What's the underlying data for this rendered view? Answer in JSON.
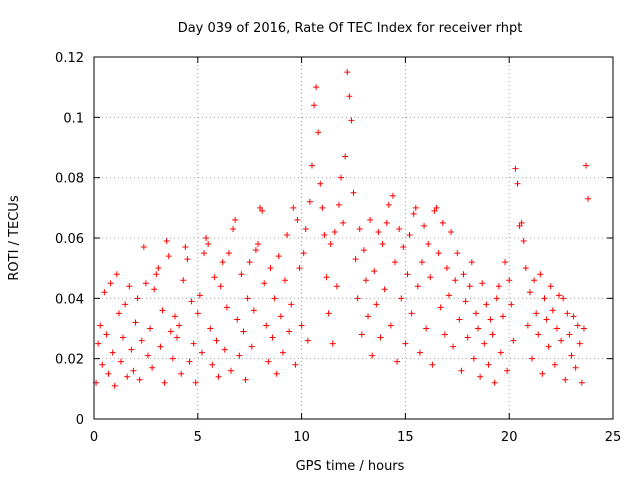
{
  "chart_data": {
    "type": "scatter",
    "title": "Day 039 of 2016, Rate Of TEC Index for receiver rhpt",
    "xlabel": "GPS time / hours",
    "ylabel": "ROTI / TECUs",
    "xlim": [
      0,
      25
    ],
    "ylim": [
      0,
      0.12
    ],
    "xticks": [
      0,
      5,
      10,
      15,
      20,
      25
    ],
    "yticks": [
      0,
      0.02,
      0.04,
      0.06,
      0.08,
      0.1,
      0.12
    ],
    "xtick_labels": [
      "0",
      "5",
      "10",
      "15",
      "20",
      "25"
    ],
    "ytick_labels": [
      "0",
      "0.02",
      "0.04",
      "0.06",
      "0.08",
      "0.1",
      "0.12"
    ],
    "grid": true,
    "marker": "+",
    "marker_color": "#ff0000",
    "series": [
      {
        "name": "ROTI",
        "points": [
          [
            0.1,
            0.012
          ],
          [
            0.2,
            0.025
          ],
          [
            0.3,
            0.031
          ],
          [
            0.4,
            0.018
          ],
          [
            0.5,
            0.042
          ],
          [
            0.6,
            0.028
          ],
          [
            0.7,
            0.015
          ],
          [
            0.8,
            0.045
          ],
          [
            0.9,
            0.022
          ],
          [
            1.0,
            0.011
          ],
          [
            1.1,
            0.048
          ],
          [
            1.2,
            0.035
          ],
          [
            1.3,
            0.019
          ],
          [
            1.4,
            0.027
          ],
          [
            1.5,
            0.038
          ],
          [
            1.6,
            0.014
          ],
          [
            1.7,
            0.044
          ],
          [
            1.8,
            0.023
          ],
          [
            1.9,
            0.016
          ],
          [
            2.0,
            0.032
          ],
          [
            2.1,
            0.04
          ],
          [
            2.2,
            0.013
          ],
          [
            2.3,
            0.026
          ],
          [
            2.4,
            0.057
          ],
          [
            2.5,
            0.045
          ],
          [
            2.6,
            0.021
          ],
          [
            2.7,
            0.03
          ],
          [
            2.8,
            0.017
          ],
          [
            2.9,
            0.043
          ],
          [
            3.0,
            0.048
          ],
          [
            3.1,
            0.05
          ],
          [
            3.2,
            0.024
          ],
          [
            3.3,
            0.036
          ],
          [
            3.4,
            0.012
          ],
          [
            3.5,
            0.059
          ],
          [
            3.6,
            0.054
          ],
          [
            3.7,
            0.029
          ],
          [
            3.8,
            0.02
          ],
          [
            3.9,
            0.034
          ],
          [
            4.0,
            0.027
          ],
          [
            4.1,
            0.031
          ],
          [
            4.2,
            0.015
          ],
          [
            4.3,
            0.046
          ],
          [
            4.4,
            0.057
          ],
          [
            4.5,
            0.053
          ],
          [
            4.6,
            0.019
          ],
          [
            4.7,
            0.039
          ],
          [
            4.8,
            0.025
          ],
          [
            4.9,
            0.012
          ],
          [
            5.0,
            0.035
          ],
          [
            5.1,
            0.041
          ],
          [
            5.2,
            0.022
          ],
          [
            5.3,
            0.055
          ],
          [
            5.4,
            0.06
          ],
          [
            5.5,
            0.058
          ],
          [
            5.6,
            0.03
          ],
          [
            5.7,
            0.018
          ],
          [
            5.8,
            0.047
          ],
          [
            5.9,
            0.026
          ],
          [
            6.0,
            0.014
          ],
          [
            6.1,
            0.044
          ],
          [
            6.2,
            0.052
          ],
          [
            6.3,
            0.023
          ],
          [
            6.4,
            0.037
          ],
          [
            6.5,
            0.055
          ],
          [
            6.6,
            0.016
          ],
          [
            6.7,
            0.063
          ],
          [
            6.8,
            0.066
          ],
          [
            6.9,
            0.033
          ],
          [
            7.0,
            0.021
          ],
          [
            7.1,
            0.048
          ],
          [
            7.2,
            0.029
          ],
          [
            7.3,
            0.013
          ],
          [
            7.4,
            0.04
          ],
          [
            7.5,
            0.052
          ],
          [
            7.6,
            0.024
          ],
          [
            7.7,
            0.036
          ],
          [
            7.8,
            0.056
          ],
          [
            7.9,
            0.058
          ],
          [
            8.0,
            0.07
          ],
          [
            8.1,
            0.069
          ],
          [
            8.2,
            0.045
          ],
          [
            8.3,
            0.031
          ],
          [
            8.4,
            0.019
          ],
          [
            8.5,
            0.05
          ],
          [
            8.6,
            0.027
          ],
          [
            8.7,
            0.04
          ],
          [
            8.8,
            0.015
          ],
          [
            8.9,
            0.054
          ],
          [
            9.0,
            0.034
          ],
          [
            9.1,
            0.022
          ],
          [
            9.2,
            0.046
          ],
          [
            9.3,
            0.061
          ],
          [
            9.4,
            0.029
          ],
          [
            9.5,
            0.038
          ],
          [
            9.6,
            0.07
          ],
          [
            9.7,
            0.018
          ],
          [
            9.8,
            0.066
          ],
          [
            9.9,
            0.05
          ],
          [
            10.0,
            0.031
          ],
          [
            10.1,
            0.055
          ],
          [
            10.2,
            0.063
          ],
          [
            10.3,
            0.026
          ],
          [
            10.4,
            0.072
          ],
          [
            10.5,
            0.084
          ],
          [
            10.6,
            0.104
          ],
          [
            10.7,
            0.11
          ],
          [
            10.8,
            0.095
          ],
          [
            10.9,
            0.078
          ],
          [
            11.0,
            0.07
          ],
          [
            11.1,
            0.061
          ],
          [
            11.2,
            0.047
          ],
          [
            11.3,
            0.035
          ],
          [
            11.4,
            0.058
          ],
          [
            11.5,
            0.025
          ],
          [
            11.6,
            0.062
          ],
          [
            11.7,
            0.044
          ],
          [
            11.8,
            0.071
          ],
          [
            11.9,
            0.08
          ],
          [
            12.0,
            0.065
          ],
          [
            12.1,
            0.087
          ],
          [
            12.2,
            0.115
          ],
          [
            12.3,
            0.107
          ],
          [
            12.4,
            0.099
          ],
          [
            12.5,
            0.075
          ],
          [
            12.6,
            0.053
          ],
          [
            12.7,
            0.04
          ],
          [
            12.8,
            0.063
          ],
          [
            12.9,
            0.028
          ],
          [
            13.0,
            0.056
          ],
          [
            13.1,
            0.046
          ],
          [
            13.2,
            0.034
          ],
          [
            13.3,
            0.066
          ],
          [
            13.4,
            0.021
          ],
          [
            13.5,
            0.049
          ],
          [
            13.6,
            0.038
          ],
          [
            13.7,
            0.062
          ],
          [
            13.8,
            0.027
          ],
          [
            13.9,
            0.058
          ],
          [
            14.0,
            0.043
          ],
          [
            14.1,
            0.065
          ],
          [
            14.2,
            0.071
          ],
          [
            14.3,
            0.031
          ],
          [
            14.4,
            0.074
          ],
          [
            14.5,
            0.052
          ],
          [
            14.6,
            0.019
          ],
          [
            14.7,
            0.063
          ],
          [
            14.8,
            0.04
          ],
          [
            14.9,
            0.057
          ],
          [
            15.0,
            0.025
          ],
          [
            15.1,
            0.048
          ],
          [
            15.2,
            0.061
          ],
          [
            15.3,
            0.035
          ],
          [
            15.4,
            0.068
          ],
          [
            15.5,
            0.07
          ],
          [
            15.6,
            0.044
          ],
          [
            15.7,
            0.022
          ],
          [
            15.8,
            0.052
          ],
          [
            15.9,
            0.064
          ],
          [
            16.0,
            0.03
          ],
          [
            16.1,
            0.058
          ],
          [
            16.2,
            0.047
          ],
          [
            16.3,
            0.018
          ],
          [
            16.4,
            0.069
          ],
          [
            16.5,
            0.07
          ],
          [
            16.6,
            0.055
          ],
          [
            16.7,
            0.037
          ],
          [
            16.8,
            0.065
          ],
          [
            16.9,
            0.028
          ],
          [
            17.0,
            0.05
          ],
          [
            17.1,
            0.041
          ],
          [
            17.2,
            0.062
          ],
          [
            17.3,
            0.024
          ],
          [
            17.4,
            0.046
          ],
          [
            17.5,
            0.055
          ],
          [
            17.6,
            0.033
          ],
          [
            17.7,
            0.016
          ],
          [
            17.8,
            0.048
          ],
          [
            17.9,
            0.039
          ],
          [
            18.0,
            0.027
          ],
          [
            18.1,
            0.044
          ],
          [
            18.2,
            0.052
          ],
          [
            18.3,
            0.02
          ],
          [
            18.4,
            0.035
          ],
          [
            18.5,
            0.03
          ],
          [
            18.6,
            0.014
          ],
          [
            18.7,
            0.045
          ],
          [
            18.8,
            0.025
          ],
          [
            18.9,
            0.038
          ],
          [
            19.0,
            0.018
          ],
          [
            19.1,
            0.033
          ],
          [
            19.2,
            0.028
          ],
          [
            19.3,
            0.012
          ],
          [
            19.4,
            0.04
          ],
          [
            19.5,
            0.044
          ],
          [
            19.6,
            0.022
          ],
          [
            19.7,
            0.034
          ],
          [
            19.8,
            0.052
          ],
          [
            19.9,
            0.016
          ],
          [
            20.0,
            0.046
          ],
          [
            20.1,
            0.038
          ],
          [
            20.2,
            0.026
          ],
          [
            20.3,
            0.083
          ],
          [
            20.4,
            0.078
          ],
          [
            20.5,
            0.064
          ],
          [
            20.6,
            0.065
          ],
          [
            20.7,
            0.059
          ],
          [
            20.8,
            0.05
          ],
          [
            20.9,
            0.031
          ],
          [
            21.0,
            0.042
          ],
          [
            21.1,
            0.02
          ],
          [
            21.2,
            0.046
          ],
          [
            21.3,
            0.035
          ],
          [
            21.4,
            0.028
          ],
          [
            21.5,
            0.048
          ],
          [
            21.6,
            0.015
          ],
          [
            21.7,
            0.04
          ],
          [
            21.8,
            0.033
          ],
          [
            21.9,
            0.024
          ],
          [
            22.0,
            0.044
          ],
          [
            22.1,
            0.036
          ],
          [
            22.2,
            0.018
          ],
          [
            22.3,
            0.03
          ],
          [
            22.4,
            0.041
          ],
          [
            22.5,
            0.026
          ],
          [
            22.6,
            0.04
          ],
          [
            22.7,
            0.013
          ],
          [
            22.8,
            0.035
          ],
          [
            22.9,
            0.028
          ],
          [
            23.0,
            0.021
          ],
          [
            23.1,
            0.034
          ],
          [
            23.2,
            0.017
          ],
          [
            23.3,
            0.031
          ],
          [
            23.4,
            0.025
          ],
          [
            23.5,
            0.012
          ],
          [
            23.6,
            0.03
          ],
          [
            23.7,
            0.084
          ],
          [
            23.8,
            0.073
          ]
        ]
      }
    ]
  }
}
